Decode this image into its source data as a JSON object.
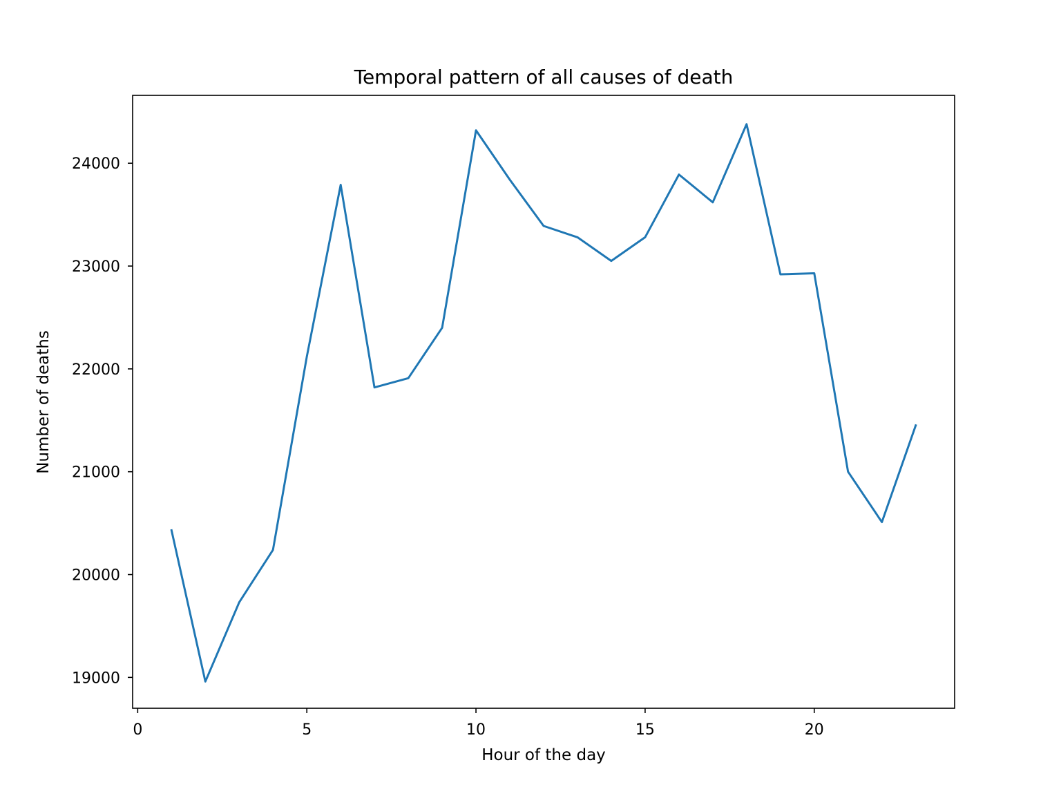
{
  "chart_data": {
    "type": "line",
    "title": "Temporal pattern of all causes of death",
    "xlabel": "Hour of the day",
    "ylabel": "Number of deaths",
    "xlim": [
      -0.15,
      24.15
    ],
    "ylim": [
      18700,
      24660
    ],
    "x_ticks": [
      0,
      5,
      10,
      15,
      20
    ],
    "y_ticks": [
      19000,
      20000,
      21000,
      22000,
      23000,
      24000
    ],
    "grid": false,
    "legend": "none",
    "series": [
      {
        "color": "#1f77b4",
        "x": [
          1,
          2,
          3,
          4,
          5,
          6,
          7,
          8,
          9,
          10,
          11,
          12,
          13,
          14,
          15,
          16,
          17,
          18,
          19,
          20,
          21,
          22,
          23
        ],
        "values": [
          20430,
          18960,
          19730,
          20240,
          22120,
          23790,
          21820,
          21910,
          22400,
          24320,
          23840,
          23390,
          23280,
          23050,
          23280,
          23890,
          23620,
          24380,
          22920,
          22930,
          21000,
          20510,
          21450
        ]
      }
    ]
  }
}
